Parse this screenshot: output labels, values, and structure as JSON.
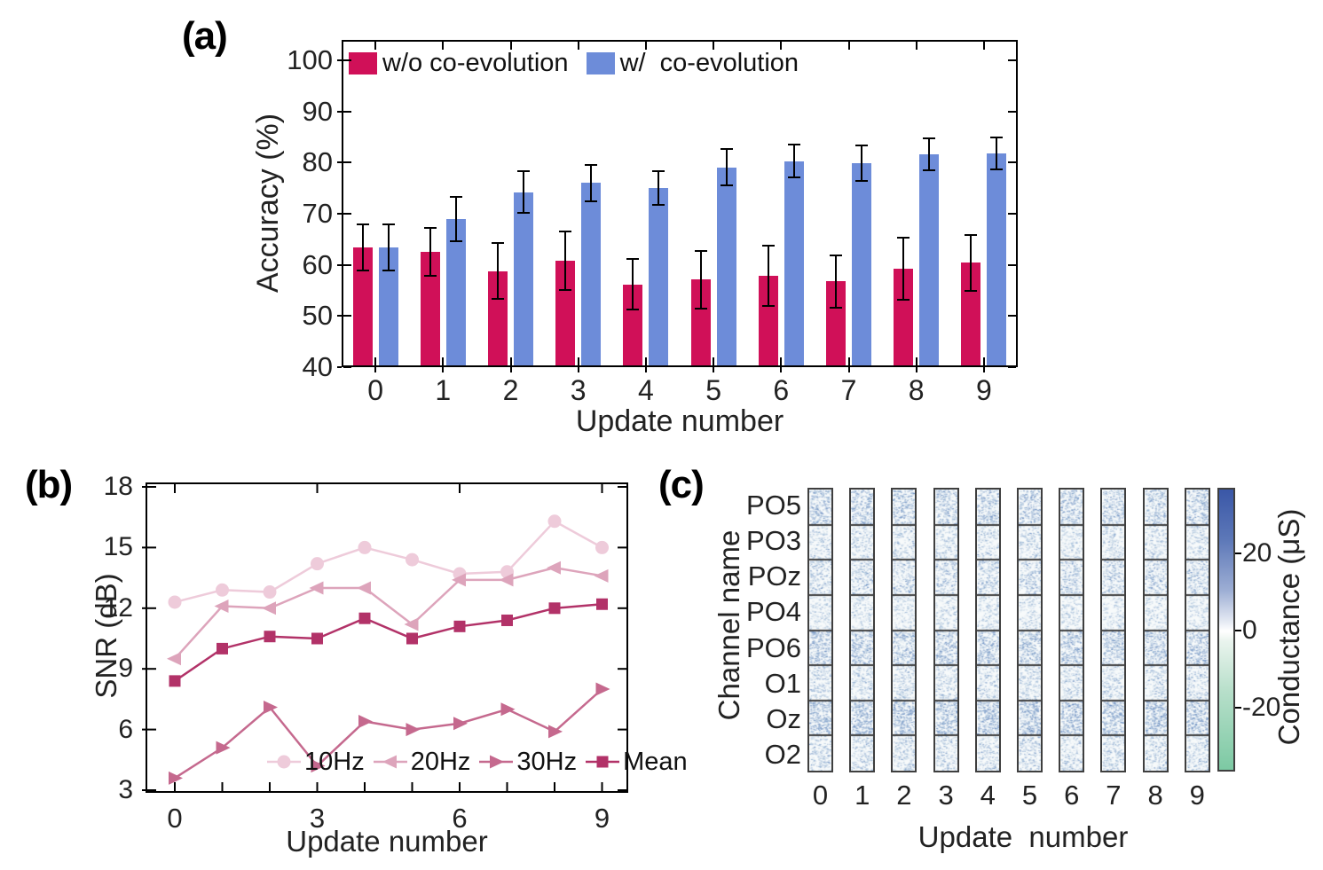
{
  "panels": {
    "a": {
      "label": "(a)"
    },
    "b": {
      "label": "(b)"
    },
    "c": {
      "label": "(c)"
    }
  },
  "chart_data": [
    {
      "panel": "a",
      "type": "bar",
      "xlabel": "Update number",
      "ylabel": "Accuracy (%)",
      "categories": [
        "0",
        "1",
        "2",
        "3",
        "4",
        "5",
        "6",
        "7",
        "8",
        "9"
      ],
      "yticks": [
        40,
        50,
        60,
        70,
        80,
        90,
        100
      ],
      "ylim": [
        40,
        104
      ],
      "series": [
        {
          "name": "w/o co-evolution",
          "color": "#d01058",
          "values": [
            63.4,
            62.5,
            58.8,
            60.8,
            56.2,
            57.1,
            57.8,
            56.8,
            59.2,
            60.4
          ],
          "errors": [
            4.5,
            4.7,
            5.5,
            5.7,
            4.9,
            5.7,
            5.9,
            5.1,
            6.1,
            5.4
          ]
        },
        {
          "name": "w/  co-evolution",
          "color": "#6d8cd9",
          "values": [
            63.4,
            69.0,
            74.2,
            76.0,
            75.1,
            79.1,
            80.3,
            79.9,
            81.6,
            81.8
          ],
          "errors": [
            4.5,
            4.3,
            4.1,
            3.6,
            3.3,
            3.5,
            3.2,
            3.5,
            3.1,
            3.2
          ]
        }
      ]
    },
    {
      "panel": "b",
      "type": "line",
      "xlabel": "Update number",
      "ylabel": "SNR (dB)",
      "x": [
        0,
        1,
        2,
        3,
        4,
        5,
        6,
        7,
        8,
        9
      ],
      "xticks": [
        0,
        3,
        6,
        9
      ],
      "yticks": [
        3,
        6,
        9,
        12,
        15,
        18
      ],
      "ylim": [
        1.9,
        18
      ],
      "series": [
        {
          "name": "10Hz",
          "marker": "circle",
          "color": "#eecbda",
          "values": [
            12.3,
            12.9,
            12.8,
            14.2,
            15.0,
            14.4,
            13.7,
            13.8,
            16.3,
            15.0
          ]
        },
        {
          "name": "20Hz",
          "marker": "triangle-left",
          "color": "#dda4bb",
          "values": [
            9.5,
            12.1,
            12.0,
            13.0,
            13.0,
            11.2,
            13.4,
            13.4,
            14.0,
            13.6
          ]
        },
        {
          "name": "30Hz",
          "marker": "triangle-right",
          "color": "#c5698e",
          "values": [
            3.6,
            5.1,
            7.1,
            4.2,
            6.4,
            6.0,
            6.3,
            7.0,
            5.9,
            8.0
          ]
        },
        {
          "name": "Mean",
          "marker": "square",
          "color": "#b23268",
          "values": [
            8.4,
            10.0,
            10.6,
            10.5,
            11.5,
            10.5,
            11.1,
            11.4,
            12.0,
            12.2
          ]
        }
      ]
    },
    {
      "panel": "c",
      "type": "heatmap",
      "xlabel": "Update  number",
      "ylabel": "Channel name",
      "columns": [
        "0",
        "1",
        "2",
        "3",
        "4",
        "5",
        "6",
        "7",
        "8",
        "9"
      ],
      "rows": [
        "PO5",
        "PO3",
        "POz",
        "PO4",
        "PO6",
        "O1",
        "Oz",
        "O2"
      ],
      "row_intensity": [
        0.55,
        0.3,
        0.42,
        0.25,
        0.62,
        0.33,
        0.72,
        0.35
      ],
      "cell_background": "#f7fafb",
      "colorbar": {
        "label": "Conductance (μS)",
        "ticks": [
          20,
          0,
          -20
        ],
        "vmax": 37,
        "vmin": -36.6,
        "top_color": "#3a57a7",
        "mid_color": "#ffffff",
        "bottom_color": "#7cc9a3"
      }
    }
  ]
}
